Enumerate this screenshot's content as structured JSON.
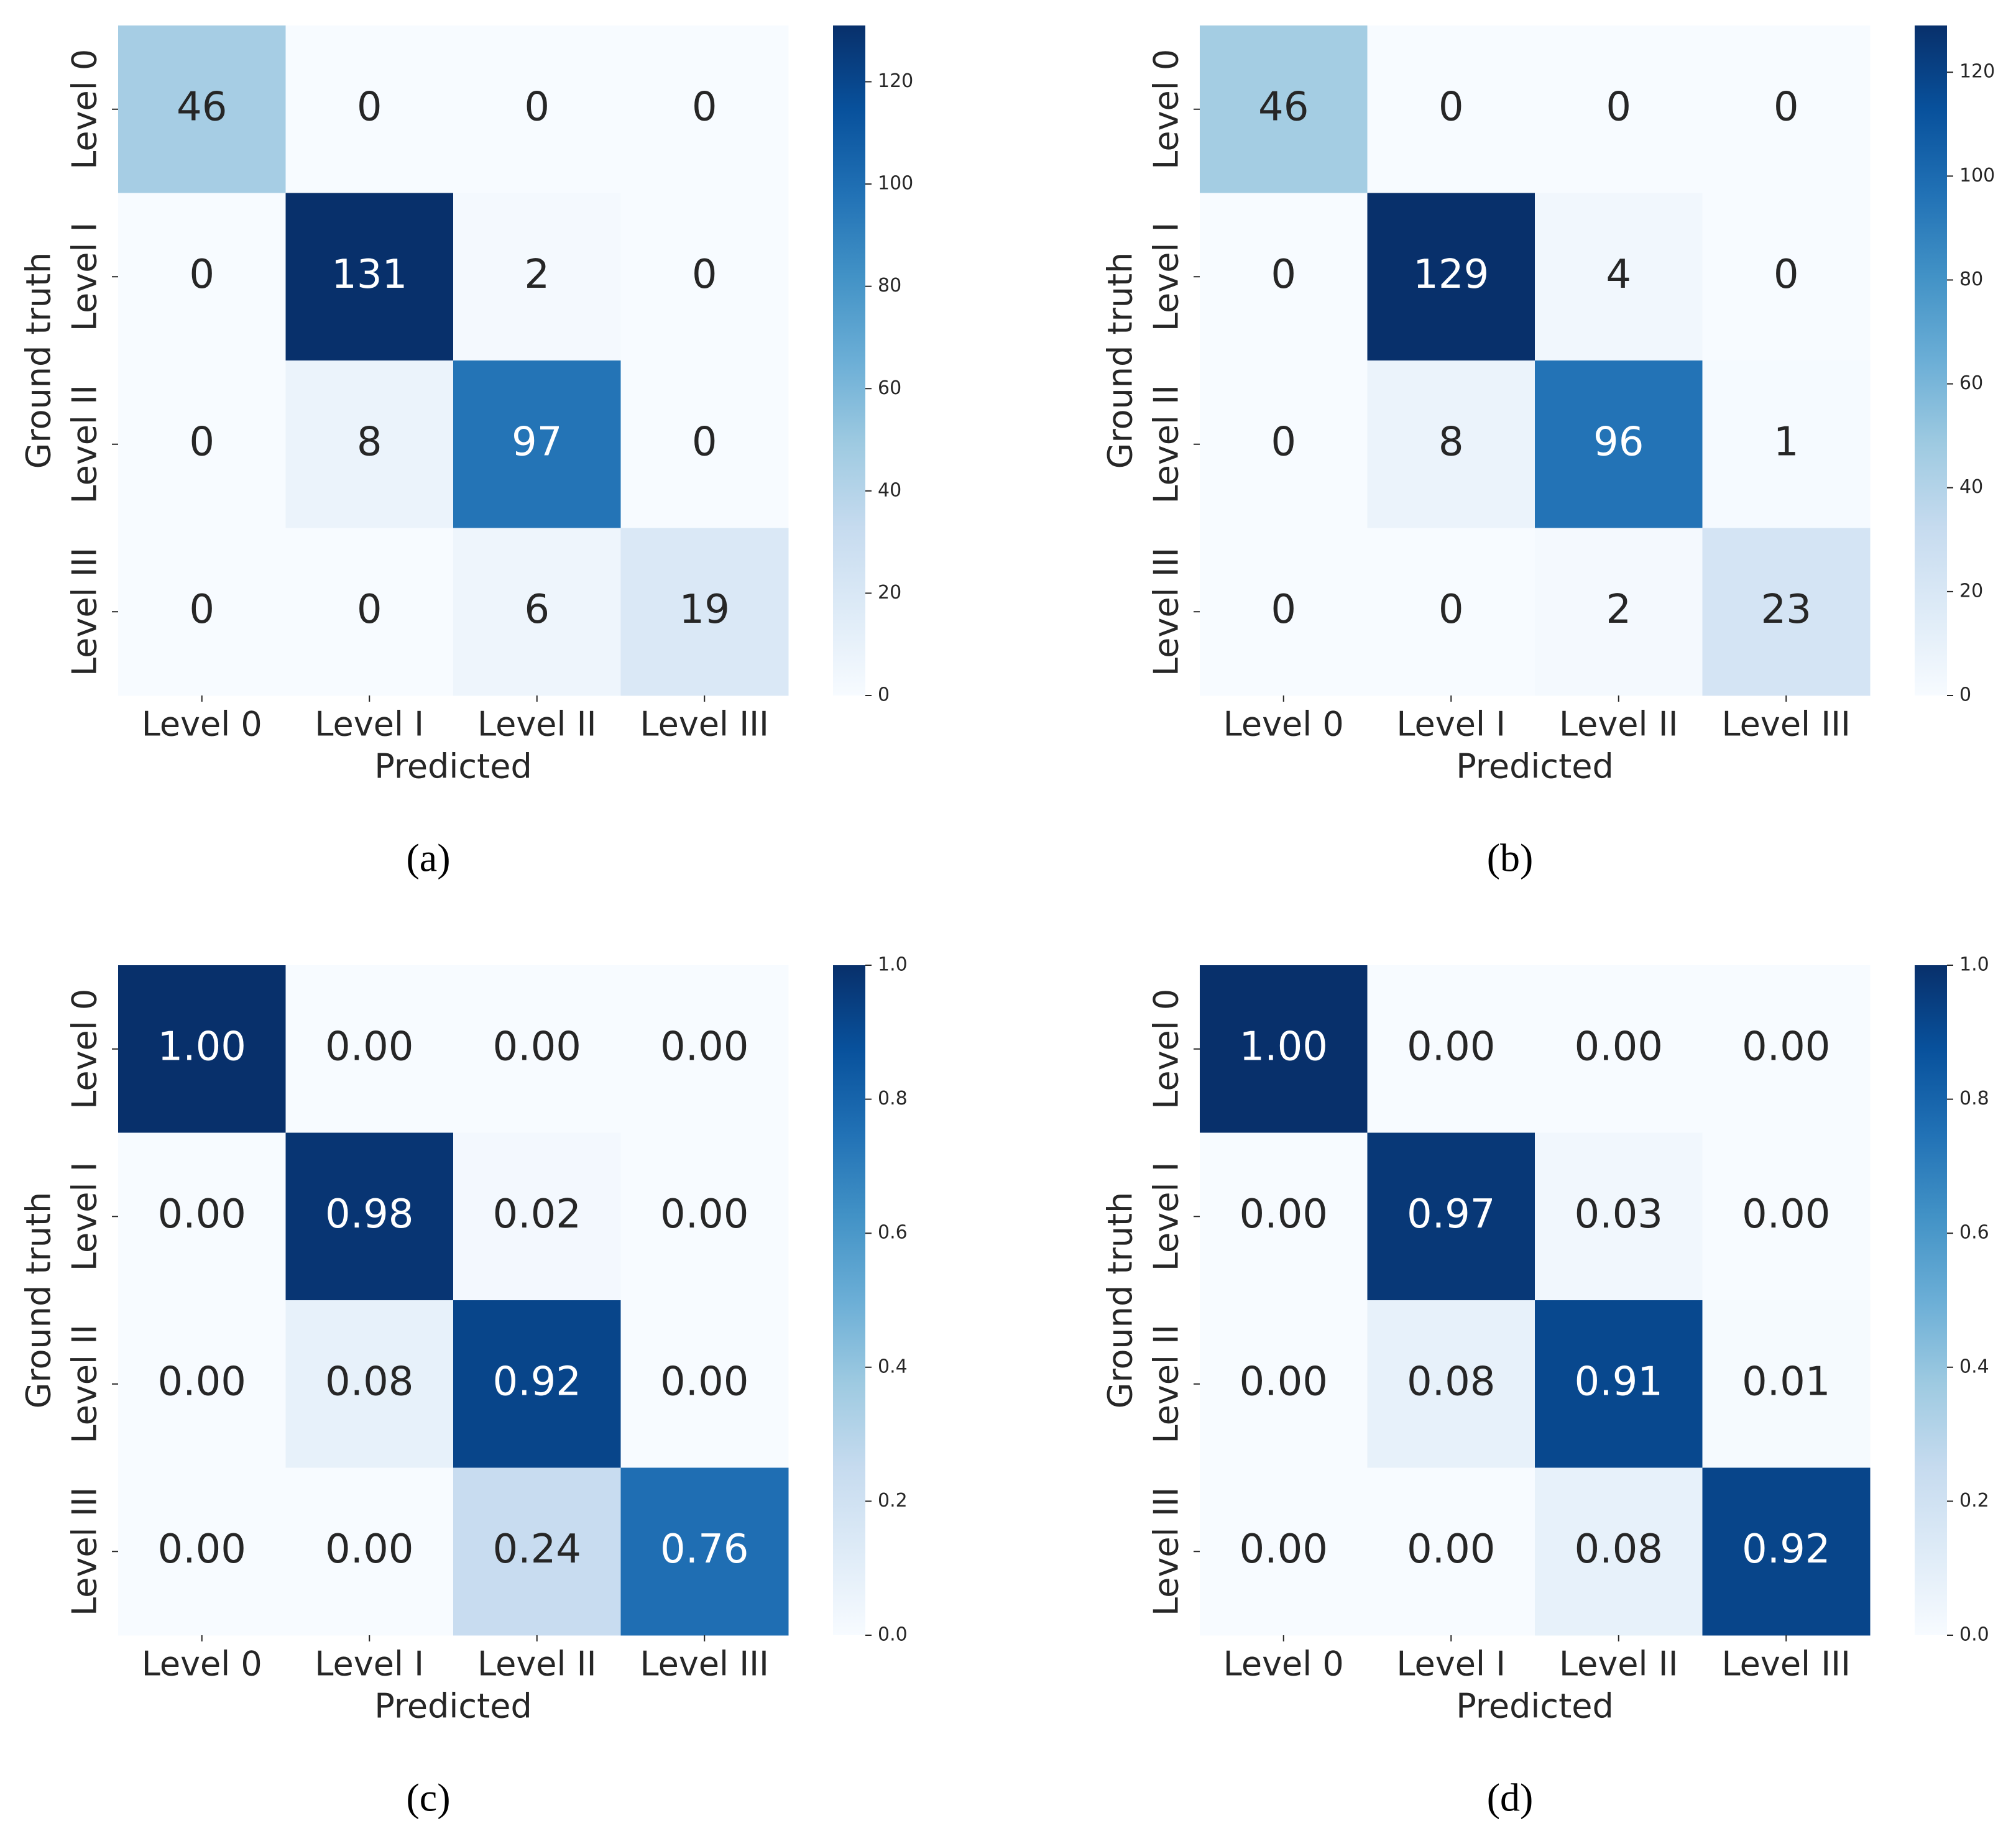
{
  "chart_data": [
    {
      "type": "heatmap",
      "caption": "(a)",
      "x_label": "Predicted",
      "y_label": "Ground truth",
      "x_categories": [
        "Level 0",
        "Level I",
        "Level II",
        "Level III"
      ],
      "y_categories": [
        "Level 0",
        "Level I",
        "Level II",
        "Level III"
      ],
      "values": [
        [
          46,
          0,
          0,
          0
        ],
        [
          0,
          131,
          2,
          0
        ],
        [
          0,
          8,
          97,
          0
        ],
        [
          0,
          0,
          6,
          19
        ]
      ],
      "colormap": "Blues",
      "clim": [
        0,
        131
      ],
      "cticks": [
        0,
        20,
        40,
        60,
        80,
        100,
        120
      ]
    },
    {
      "type": "heatmap",
      "caption": "(b)",
      "x_label": "Predicted",
      "y_label": "Ground truth",
      "x_categories": [
        "Level 0",
        "Level I",
        "Level II",
        "Level III"
      ],
      "y_categories": [
        "Level 0",
        "Level I",
        "Level II",
        "Level III"
      ],
      "values": [
        [
          46,
          0,
          0,
          0
        ],
        [
          0,
          129,
          4,
          0
        ],
        [
          0,
          8,
          96,
          1
        ],
        [
          0,
          0,
          2,
          23
        ]
      ],
      "colormap": "Blues",
      "clim": [
        0,
        129
      ],
      "cticks": [
        0,
        20,
        40,
        60,
        80,
        100,
        120
      ]
    },
    {
      "type": "heatmap",
      "caption": "(c)",
      "x_label": "Predicted",
      "y_label": "Ground truth",
      "x_categories": [
        "Level 0",
        "Level I",
        "Level II",
        "Level III"
      ],
      "y_categories": [
        "Level 0",
        "Level I",
        "Level II",
        "Level III"
      ],
      "values": [
        [
          1,
          0,
          0,
          0
        ],
        [
          0,
          0.98,
          0.02,
          0
        ],
        [
          0,
          0.08,
          0.92,
          0
        ],
        [
          0,
          0,
          0.24,
          0.76
        ]
      ],
      "value_labels": [
        [
          "1.00",
          "0.00",
          "0.00",
          "0.00"
        ],
        [
          "0.00",
          "0.98",
          "0.02",
          "0.00"
        ],
        [
          "0.00",
          "0.08",
          "0.92",
          "0.00"
        ],
        [
          "0.00",
          "0.00",
          "0.24",
          "0.76"
        ]
      ],
      "colormap": "Blues",
      "clim": [
        0,
        1
      ],
      "cticks": [
        {
          "value": 0,
          "label": "0.0"
        },
        0.2,
        0.4,
        0.6,
        0.8,
        {
          "value": 1,
          "label": "1.0"
        }
      ]
    },
    {
      "type": "heatmap",
      "caption": "(d)",
      "x_label": "Predicted",
      "y_label": "Ground truth",
      "x_categories": [
        "Level 0",
        "Level I",
        "Level II",
        "Level III"
      ],
      "y_categories": [
        "Level 0",
        "Level I",
        "Level II",
        "Level III"
      ],
      "values": [
        [
          1,
          0,
          0,
          0
        ],
        [
          0,
          0.97,
          0.03,
          0
        ],
        [
          0,
          0.08,
          0.91,
          0.01
        ],
        [
          0,
          0,
          0.08,
          0.92
        ]
      ],
      "value_labels": [
        [
          "1.00",
          "0.00",
          "0.00",
          "0.00"
        ],
        [
          "0.00",
          "0.97",
          "0.03",
          "0.00"
        ],
        [
          "0.00",
          "0.08",
          "0.91",
          "0.01"
        ],
        [
          "0.00",
          "0.00",
          "0.08",
          "0.92"
        ]
      ],
      "colormap": "Blues",
      "clim": [
        0,
        1
      ],
      "cticks": [
        {
          "value": 0,
          "label": "0.0"
        },
        0.2,
        0.4,
        0.6,
        0.8,
        {
          "value": 1,
          "label": "1.0"
        }
      ]
    }
  ]
}
